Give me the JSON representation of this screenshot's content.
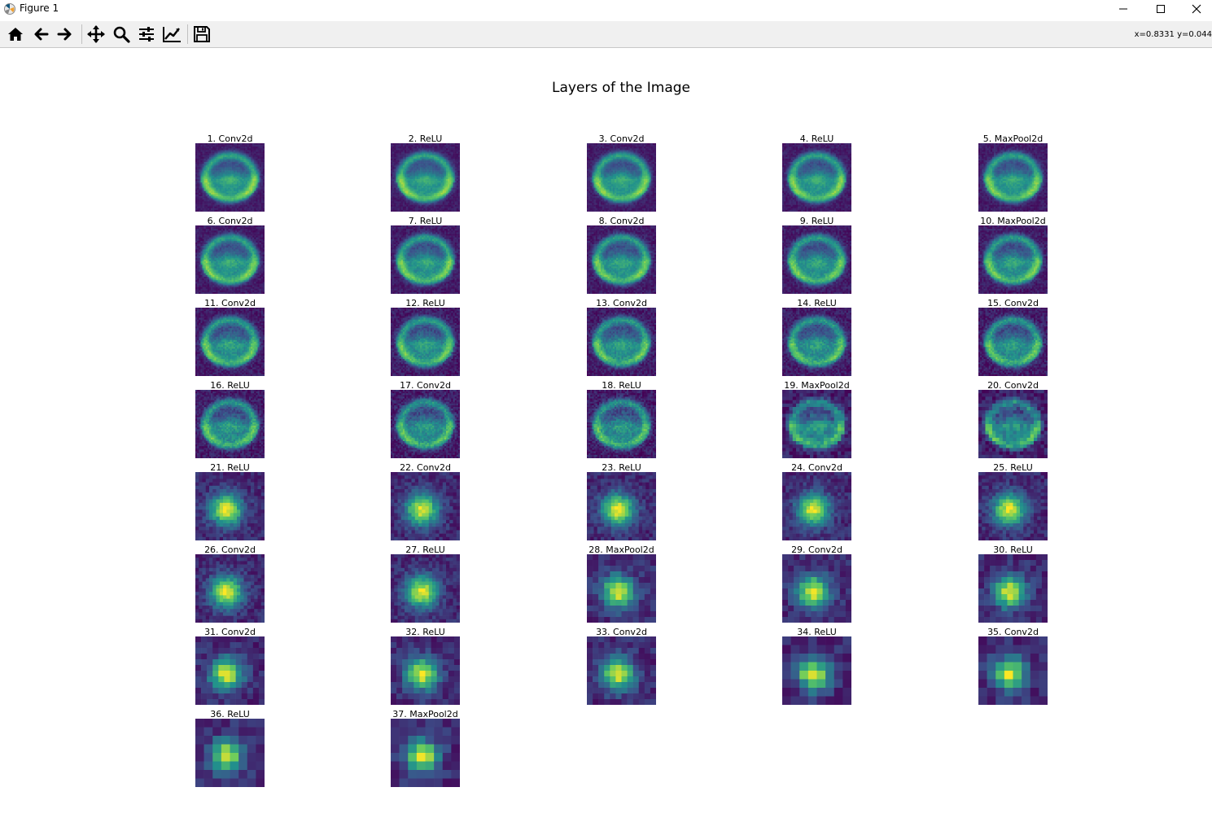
{
  "window": {
    "title": "Figure 1"
  },
  "toolbar": {
    "buttons": [
      {
        "name": "home-button",
        "icon": "home-icon"
      },
      {
        "name": "back-button",
        "icon": "arrow-left-icon"
      },
      {
        "name": "forward-button",
        "icon": "arrow-right-icon"
      },
      {
        "name": "pan-button",
        "icon": "move-icon"
      },
      {
        "name": "zoom-button",
        "icon": "magnifier-icon"
      },
      {
        "name": "configure-subplots-button",
        "icon": "sliders-icon"
      },
      {
        "name": "edit-axes-button",
        "icon": "line-chart-icon"
      },
      {
        "name": "save-button",
        "icon": "floppy-disk-icon"
      }
    ],
    "coords": "x=0.8331 y=0.044"
  },
  "figure": {
    "suptitle": "Layers of the Image",
    "layers": [
      "1. Conv2d",
      "2. ReLU",
      "3. Conv2d",
      "4. ReLU",
      "5. MaxPool2d",
      "6. Conv2d",
      "7. ReLU",
      "8. Conv2d",
      "9. ReLU",
      "10. MaxPool2d",
      "11. Conv2d",
      "12. ReLU",
      "13. Conv2d",
      "14. ReLU",
      "15. Conv2d",
      "16. ReLU",
      "17. Conv2d",
      "18. ReLU",
      "19. MaxPool2d",
      "20. Conv2d",
      "21. ReLU",
      "22. Conv2d",
      "23. ReLU",
      "24. Conv2d",
      "25. ReLU",
      "26. Conv2d",
      "27. ReLU",
      "28. MaxPool2d",
      "29. Conv2d",
      "30. ReLU",
      "31. Conv2d",
      "32. ReLU",
      "33. Conv2d",
      "34. ReLU",
      "35. Conv2d",
      "36. ReLU",
      "37. MaxPool2d"
    ],
    "colormap": {
      "low": "#440154",
      "mid": "#21918c",
      "high": "#fde725"
    }
  }
}
